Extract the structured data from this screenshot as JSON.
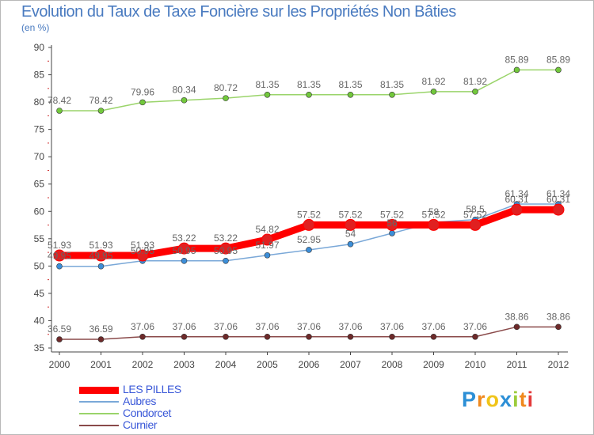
{
  "header": {
    "title": "Evolution du Taux de Taxe Foncière sur les Propriétés Non Bâties",
    "unit": "(en %)"
  },
  "logo": {
    "letters": [
      "P",
      "r",
      "o",
      "x",
      "i",
      "t",
      "i"
    ],
    "colors": [
      "#2c8fd6",
      "#f0891e",
      "#f0c419",
      "#2c8fd6",
      "#9ccc3b",
      "#f0891e",
      "#e43b3b"
    ]
  },
  "chart_data": {
    "type": "line",
    "x": [
      "2000",
      "2001",
      "2002",
      "2003",
      "2004",
      "2005",
      "2006",
      "2007",
      "2008",
      "2009",
      "2010",
      "2011",
      "2012"
    ],
    "ylim": [
      35,
      90
    ],
    "yticks": [
      35,
      40,
      45,
      50,
      55,
      60,
      65,
      70,
      75,
      80,
      85,
      90
    ],
    "grid": false,
    "legend": "bottom-left",
    "series": [
      {
        "name": "LES PILLES",
        "color": "#ff0000",
        "width": 9,
        "marker": "#e02020",
        "values": [
          51.93,
          51.93,
          51.93,
          53.22,
          53.22,
          54.82,
          57.52,
          57.52,
          57.52,
          57.52,
          57.52,
          60.31,
          60.31
        ],
        "labels": [
          "51.93",
          "51.93",
          "51.93",
          "53.22",
          "53.22",
          "54.82",
          "57.52",
          "57.52",
          "57.52",
          "57.52",
          "57.52",
          "60.31",
          "60.31"
        ]
      },
      {
        "name": "Aubres",
        "color": "#7aa8d8",
        "width": 1.5,
        "marker": "#3c8ed8",
        "values": [
          49.95,
          49.95,
          50.95,
          50.95,
          50.95,
          51.97,
          52.95,
          54,
          56,
          58,
          58.5,
          61.34,
          61.34
        ],
        "labels": [
          "49.95",
          "49.95",
          "50.95",
          "50.95",
          "50.95",
          "51.97",
          "52.95",
          "54",
          "56",
          "58",
          "58.5",
          "61.34",
          "61.34"
        ]
      },
      {
        "name": "Condorcet",
        "color": "#9ad46a",
        "width": 1.5,
        "marker": "#72c83c",
        "values": [
          78.42,
          78.42,
          79.96,
          80.34,
          80.72,
          81.35,
          81.35,
          81.35,
          81.35,
          81.92,
          81.92,
          85.89,
          85.89
        ],
        "labels": [
          "78.42",
          "78.42",
          "79.96",
          "80.34",
          "80.72",
          "81.35",
          "81.35",
          "81.35",
          "81.35",
          "81.92",
          "81.92",
          "85.89",
          "85.89"
        ]
      },
      {
        "name": "Curnier",
        "color": "#8a4a4a",
        "width": 1.5,
        "marker": "#6e2a2a",
        "values": [
          36.59,
          36.59,
          37.06,
          37.06,
          37.06,
          37.06,
          37.06,
          37.06,
          37.06,
          37.06,
          37.06,
          38.86,
          38.86
        ],
        "labels": [
          "36.59",
          "36.59",
          "37.06",
          "37.06",
          "37.06",
          "37.06",
          "37.06",
          "37.06",
          "37.06",
          "37.06",
          "37.06",
          "38.86",
          "38.86"
        ]
      }
    ]
  }
}
